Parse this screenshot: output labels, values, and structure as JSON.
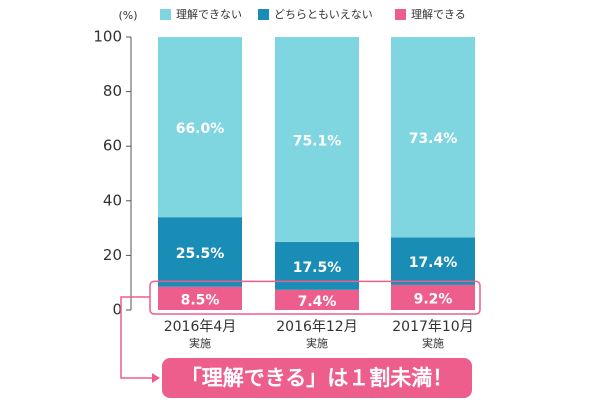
{
  "chart_data": {
    "type": "stacked-bar",
    "y_axis_label": "(%)",
    "categories": [
      "2016年4月",
      "2016年12月",
      "2017年10月"
    ],
    "category_sublabel": "実施",
    "series": [
      {
        "name": "理解できる",
        "color": "#ee5e8d",
        "values": [
          8.5,
          7.4,
          9.2
        ],
        "value_labels": [
          "8.5%",
          "7.4%",
          "9.2%"
        ]
      },
      {
        "name": "どちらともいえない",
        "color": "#1a8db6",
        "values": [
          25.5,
          17.5,
          17.4
        ],
        "value_labels": [
          "25.5%",
          "17.5%",
          "17.4%"
        ]
      },
      {
        "name": "理解できない",
        "color": "#7fd6e0",
        "values": [
          66.0,
          75.1,
          73.4
        ],
        "value_labels": [
          "66.0%",
          "75.1%",
          "73.4%"
        ]
      }
    ],
    "legend_order": [
      2,
      1,
      0
    ],
    "ylim": [
      0,
      100
    ],
    "yticks": [
      0,
      20,
      40,
      60,
      80,
      100
    ],
    "annotation": "「理解できる」は１割未満！",
    "annotation_color": "#ee5e8d"
  }
}
